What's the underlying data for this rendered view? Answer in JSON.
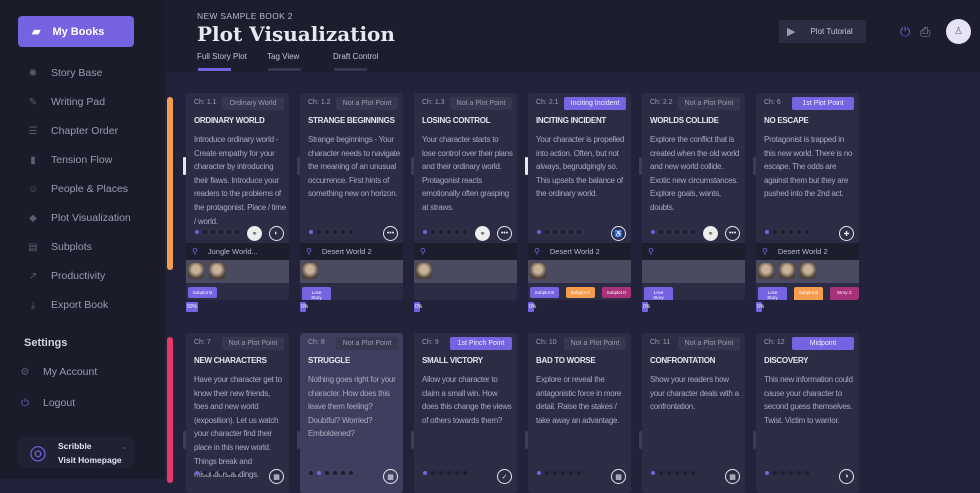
{
  "sidebar": {
    "my_books": "My Books",
    "items": [
      {
        "label": "Story Base",
        "icon": "loader-icon"
      },
      {
        "label": "Writing Pad",
        "icon": "pen-icon"
      },
      {
        "label": "Chapter Order",
        "icon": "list-icon"
      },
      {
        "label": "Tension Flow",
        "icon": "bar-chart-icon"
      },
      {
        "label": "People & Places",
        "icon": "people-icon"
      },
      {
        "label": "Plot Visualization",
        "icon": "diamond-icon"
      },
      {
        "label": "Subplots",
        "icon": "layers-icon"
      },
      {
        "label": "Productivity",
        "icon": "trend-icon"
      },
      {
        "label": "Export Book",
        "icon": "download-icon"
      }
    ],
    "settings": "Settings",
    "my_account": "My Account",
    "logout": "Logout",
    "brand_name": "Scribble",
    "brand_link": "Visit Homepage"
  },
  "header": {
    "book": "NEW SAMPLE BOOK 2",
    "title": "Plot Visualization",
    "tabs": [
      "Full Story Plot",
      "Tag View",
      "Draft Control"
    ],
    "tutorial": "Plot Tutorial"
  },
  "colors": {
    "accent": "#7563e2",
    "row1": "#f59d4e",
    "row2": "#e8386a",
    "orange_tag": "#f59d4e",
    "magenta_tag": "#a8327a"
  },
  "rows": [
    {
      "progress_labels": [
        "50%",
        "0%",
        "0%",
        "0%",
        "0%",
        "0%"
      ],
      "progress_values": [
        50,
        0,
        0,
        0,
        0,
        0
      ],
      "cards": [
        {
          "ch": "Ch: 1.1",
          "pp": "Ordinary World",
          "pp_on": false,
          "name": "ORDINARY WORLD",
          "desc": "Introduce ordinary world - Create empathy for your character by introducing their flaws. Introduce your readers to the problems of the protagonist. Place / time / world.",
          "dot": 0,
          "buttons": [
            "link-icon",
            "globe-icon"
          ],
          "location": "Jungle World...",
          "chars": 2,
          "tags": [
            {
              "label": "Subplot B",
              "color": "#7563e2"
            }
          ]
        },
        {
          "ch": "Ch: 1.2",
          "pp": "Not a Plot Point",
          "pp_on": false,
          "name": "STRANGE BEGINNINGS",
          "desc": "Strange beginnings - Your character needs to navigate the meaning of an unusual occurrence. First hints of something new on horizon.",
          "dot": 0,
          "buttons": [
            "more-icon"
          ],
          "location": "Desert World 2",
          "chars": 1,
          "tags": [
            {
              "label": "Love Story",
              "color": "#7563e2"
            }
          ]
        },
        {
          "ch": "Ch: 1.3",
          "pp": "Not a Plot Point",
          "pp_on": false,
          "name": "LOSING CONTROL",
          "desc": "Your character starts to lose control over their plans and their ordinary world. Protagonist reacts emotionally often grasping at straws.",
          "dot": 0,
          "buttons": [
            "link-icon",
            "more-icon"
          ],
          "location": "",
          "chars": 1,
          "tags": []
        },
        {
          "ch": "Ch: 2.1",
          "pp": "Inciting Incident",
          "pp_on": true,
          "name": "INCITING INCIDENT",
          "desc": "Your character is propelled into action. Often, but not always, begrudgingly so. This upsets the balance of the ordinary world.",
          "dot": 0,
          "buttons": [
            "person-icon"
          ],
          "location": "Desert World 2",
          "chars": 1,
          "tags": [
            {
              "label": "Subplot B",
              "color": "#7563e2"
            },
            {
              "label": "Subplot C",
              "color": "#f59d4e"
            },
            {
              "label": "Subplot D",
              "color": "#a8327a"
            }
          ]
        },
        {
          "ch": "Ch: 2.2",
          "pp": "Not a Plot Point",
          "pp_on": false,
          "name": "WORLDS COLLIDE",
          "desc": "Explore the conflict that is created when the old world and new world collide. Exotic new circumstances. Explore goals, wants, doubts.",
          "dot": 0,
          "buttons": [
            "link-icon",
            "more-icon"
          ],
          "location": "",
          "chars": 0,
          "tags": [
            {
              "label": "Love Story",
              "color": "#7563e2"
            }
          ]
        },
        {
          "ch": "Ch: 6",
          "pp": "1st Plot Point",
          "pp_on": true,
          "name": "NO ESCAPE",
          "desc": "Protagonist is trapped in this new world. There is no escape. The odds are against them but they are pushed into the 2nd act.",
          "dot": 0,
          "buttons": [
            "puzzle-icon"
          ],
          "location": "Desert World 2",
          "chars": 3,
          "tags": [
            {
              "label": "Love Story",
              "color": "#7563e2"
            },
            {
              "label": "Subplot B",
              "color": "#f59d4e"
            },
            {
              "label": "Story C",
              "color": "#a8327a"
            }
          ]
        }
      ]
    },
    {
      "progress_labels": [],
      "progress_values": [],
      "cards": [
        {
          "ch": "Ch: 7",
          "pp": "Not a Plot Point",
          "pp_on": false,
          "name": "NEW CHARACTERS",
          "desc": "Have your character get to know their new friends, foes and new world (exposition). Let us watch your character find their place in this new world. Things break and misunderstandings.",
          "dot": 0,
          "buttons": [
            "calendar-icon"
          ]
        },
        {
          "ch": "Ch: 8",
          "pp": "Not a Plot Point",
          "pp_on": false,
          "name": "STRUGGLE",
          "desc": "Nothing goes right for your character. How does this leave them feeling? Doubtful? Worried? Emboldened?",
          "dot": 1,
          "buttons": [
            "calendar-icon"
          ],
          "highlight": true
        },
        {
          "ch": "Ch: 9",
          "pp": "1st Pinch Point",
          "pp_on": true,
          "name": "SMALL VICTORY",
          "desc": "Allow your character to claim a small win. How does this change the views of others towards them?",
          "dot": 0,
          "buttons": [
            "check-icon"
          ]
        },
        {
          "ch": "Ch: 10",
          "pp": "Not a Plot Point",
          "pp_on": false,
          "name": "BAD TO WORSE",
          "desc": "Explore or reveal the antagonistic force in more detail. Raise the stakes / take away an advantage.",
          "dot": 0,
          "buttons": [
            "calendar-icon"
          ]
        },
        {
          "ch": "Ch: 11",
          "pp": "Not a Plot Point",
          "pp_on": false,
          "name": "CONFRONTATION",
          "desc": "Show your readers how your character deals with a confrontation.",
          "dot": 0,
          "buttons": [
            "calendar-icon"
          ]
        },
        {
          "ch": "Ch: 12",
          "pp": "Midpoint",
          "pp_on": true,
          "name": "DISCOVERY",
          "desc": "This new information could  cause your character to second guess themselves. Twist. Victim to warrior.",
          "dot": 0,
          "buttons": [
            "half-circle-icon"
          ]
        }
      ]
    }
  ]
}
